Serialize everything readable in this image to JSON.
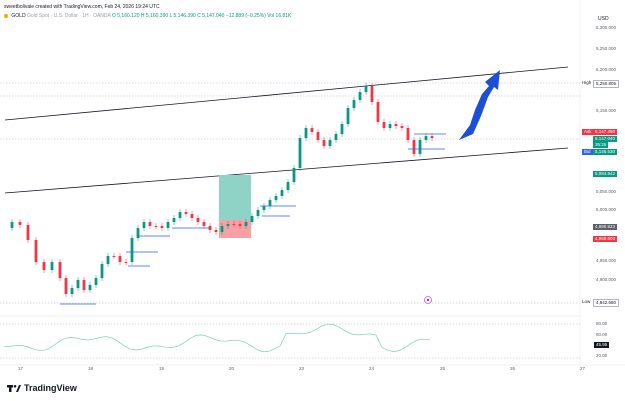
{
  "header": {
    "credit": "sweetbolivaie created with TradingView.com, Feb 24, 2026 19:24 UTC",
    "symbol": "GOLD",
    "symbol_desc": "Gold Spot · U.S. Dollar · 1H · OANDA",
    "ohlc": "O 5,160.120  H 5,160.390  L 5,146.390  C 5,147.040  −12.889 (−0.25%)",
    "vol": "Vol 16.81K"
  },
  "axis": {
    "currency": "USD",
    "price_labels": [
      "5,300.000",
      "5,250.000",
      "5,200.000",
      "5,150.000",
      "5,100.000",
      "5,050.000",
      "5,000.000",
      "4,950.000",
      "4,900.000",
      "4,850.000",
      "4,800.000"
    ],
    "rsi_labels": [
      "80.00",
      "60.00",
      "40.00",
      "20.00"
    ],
    "time_labels": [
      "17",
      "18",
      "19",
      "20",
      "23",
      "24",
      "25",
      "26",
      "27"
    ]
  },
  "tags": {
    "high_label": "High",
    "high_value": "5,250.805",
    "ask_label": "Ask",
    "ask_value": "5,147.480",
    "last_value": "5,147.040",
    "countdown": "35:25",
    "bid_label": "Bid",
    "bid_value": "5,146.530",
    "level1": "5,084.942",
    "level2": "4,990.523",
    "level3": "4,968.603",
    "low_label": "Low",
    "low_value": "4,842.680",
    "rsi_value": "45.95"
  },
  "brand": {
    "name": "TradingView"
  },
  "colors": {
    "up": "#089981",
    "down": "#f23645",
    "arrow": "#1d4ed8",
    "trend": "#131722"
  }
}
